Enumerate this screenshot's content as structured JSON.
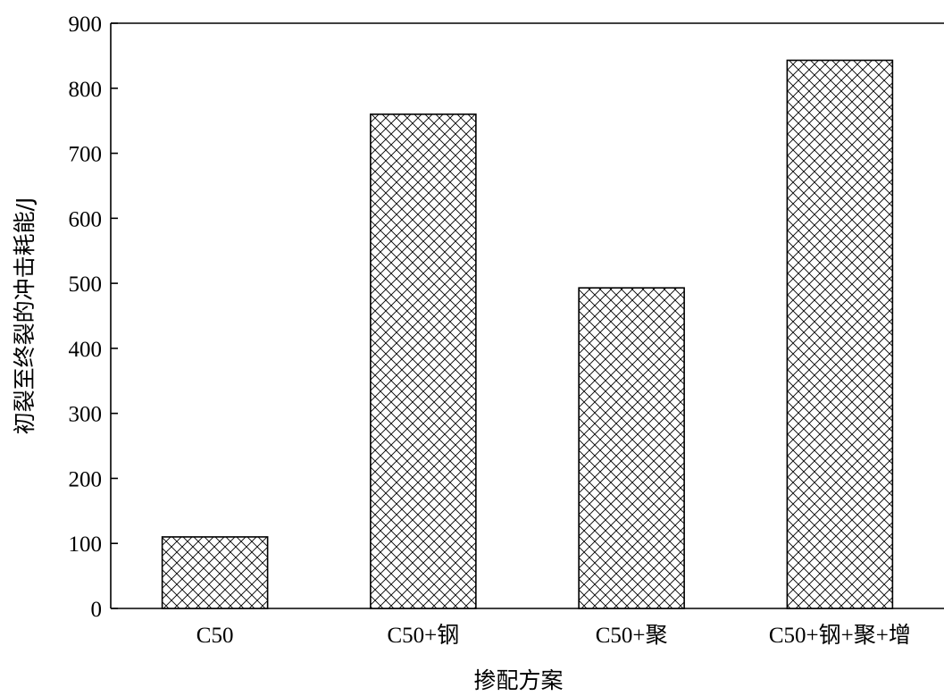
{
  "chart_data": {
    "type": "bar",
    "title": "",
    "xlabel": "掺配方案",
    "ylabel": "初裂至终裂的冲击耗能/J",
    "categories": [
      "C50",
      "C50+钢",
      "C50+聚",
      "C50+钢+聚+增"
    ],
    "values": [
      110,
      760,
      493,
      843
    ],
    "ylim": [
      0,
      900
    ],
    "yticks": [
      0,
      100,
      200,
      300,
      400,
      500,
      600,
      700,
      800,
      900
    ],
    "grid": false,
    "legend": "none",
    "bar_fill": "crosshatch",
    "bar_color": "#000000"
  }
}
